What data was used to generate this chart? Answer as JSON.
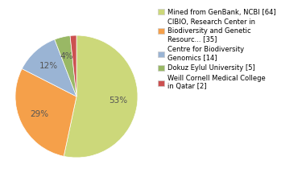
{
  "labels": [
    "Mined from GenBank, NCBI [64]",
    "CIBIO, Research Center in\nBiodiversity and Genetic\nResourc... [35]",
    "Centre for Biodiversity\nGenomics [14]",
    "Dokuz Eylul University [5]",
    "Weill Cornell Medical College\nin Qatar [2]"
  ],
  "values": [
    64,
    35,
    14,
    5,
    2
  ],
  "colors": [
    "#ccd87a",
    "#f5a04a",
    "#9ab4d4",
    "#99b865",
    "#cc5050"
  ],
  "legend_labels": [
    "Mined from GenBank, NCBI [64]",
    "CIBIO, Research Center in\nBiodiversity and Genetic\nResourc... [35]",
    "Centre for Biodiversity\nGenomics [14]",
    "Dokuz Eylul University [5]",
    "Weill Cornell Medical College\nin Qatar [2]"
  ],
  "figsize": [
    3.8,
    2.4
  ],
  "dpi": 100,
  "autotext_color": "#555555",
  "font_size": 7.5
}
